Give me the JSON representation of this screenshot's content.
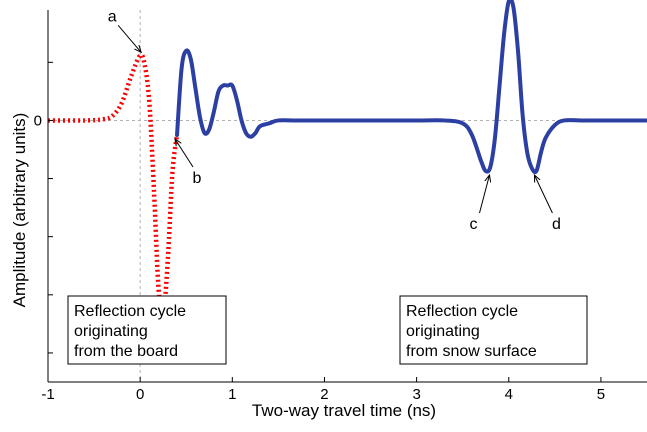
{
  "chart_data": {
    "type": "line",
    "title": "",
    "xlabel": "Two-way travel time (ns)",
    "ylabel": "Amplitude (arbitrary units)",
    "xlim": [
      -1,
      5.5
    ],
    "ylim": [
      -4.5,
      1.9
    ],
    "x_ticks": [
      -1,
      0,
      1,
      2,
      3,
      4,
      5
    ],
    "x_tick_labels": [
      "-1",
      "0",
      "1",
      "2",
      "3",
      "4",
      "5"
    ],
    "y_ticks": [
      -4,
      -3,
      -2,
      -1,
      0,
      1
    ],
    "y_tick_labels": [
      "",
      "",
      "",
      "",
      "0",
      ""
    ],
    "reference_lines": {
      "x": 0,
      "y": 0
    },
    "grid": false,
    "series": [
      {
        "style": "dotted",
        "color": "#ff0000",
        "x": [
          -1.0,
          -0.6,
          -0.4,
          -0.3,
          -0.2,
          -0.1,
          0.0,
          0.05,
          0.1,
          0.15,
          0.2,
          0.25,
          0.3,
          0.35,
          0.4
        ],
        "y": [
          0.0,
          0.0,
          0.02,
          0.08,
          0.3,
          0.75,
          1.12,
          0.95,
          0.3,
          -1.2,
          -2.9,
          -3.35,
          -2.4,
          -0.9,
          -0.25
        ]
      },
      {
        "style": "solid",
        "color": "#2c3fa3",
        "x": [
          0.4,
          0.45,
          0.5,
          0.55,
          0.6,
          0.65,
          0.7,
          0.75,
          0.8,
          0.85,
          0.9,
          0.95,
          1.0,
          1.05,
          1.1,
          1.15,
          1.2,
          1.25,
          1.3,
          1.4,
          1.5,
          1.7,
          2.0,
          2.5,
          3.0,
          3.3,
          3.5,
          3.6,
          3.7,
          3.75,
          3.8,
          3.85,
          3.9,
          3.95,
          4.0,
          4.05,
          4.1,
          4.15,
          4.2,
          4.25,
          4.3,
          4.35,
          4.4,
          4.5,
          4.6,
          4.8,
          5.0,
          5.5
        ],
        "y": [
          -0.25,
          0.9,
          1.2,
          1.05,
          0.55,
          0.05,
          -0.22,
          -0.15,
          0.15,
          0.5,
          0.6,
          0.6,
          0.6,
          0.35,
          0.0,
          -0.22,
          -0.28,
          -0.22,
          -0.1,
          -0.05,
          0.0,
          0.0,
          0.0,
          0.0,
          0.0,
          0.0,
          -0.05,
          -0.25,
          -0.7,
          -0.87,
          -0.8,
          -0.3,
          0.6,
          1.5,
          2.05,
          1.95,
          1.2,
          0.1,
          -0.55,
          -0.82,
          -0.87,
          -0.55,
          -0.3,
          -0.08,
          0.0,
          0.0,
          0.0,
          0.0
        ]
      }
    ],
    "annotations": [
      {
        "letter": "a",
        "x": 0.0,
        "y": 1.12
      },
      {
        "letter": "b",
        "x": 0.4,
        "y": -0.25
      },
      {
        "letter": "c",
        "x": 3.78,
        "y": -0.87
      },
      {
        "letter": "d",
        "x": 4.3,
        "y": -0.87
      }
    ],
    "text_boxes": [
      {
        "lines": [
          "Reflection cycle",
          "originating",
          "from the board"
        ]
      },
      {
        "lines": [
          "Reflection cycle",
          "originating",
          "from snow surface"
        ]
      }
    ]
  }
}
